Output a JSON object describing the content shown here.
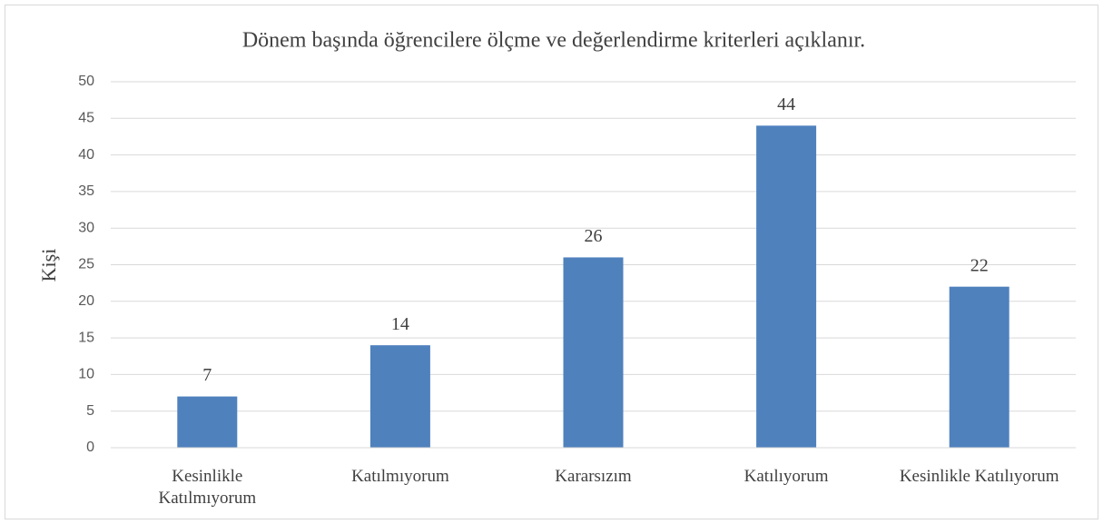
{
  "chart_data": {
    "type": "bar",
    "title": "Dönem başında öğrencilere ölçme ve değerlendirme kriterleri açıklanır.",
    "y_label": "Kişi",
    "categories": [
      "Kesinlikle Katılmıyorum",
      "Katılmıyorum",
      "Kararsızım",
      "Katılıyorum",
      "Kesinlikle Katılıyorum"
    ],
    "values": [
      7,
      14,
      26,
      44,
      22
    ],
    "color": "#4f81bd",
    "ylim": [
      0,
      50
    ],
    "yticks": [
      0,
      5,
      10,
      15,
      20,
      25,
      30,
      35,
      40,
      45,
      50
    ],
    "grid": true
  }
}
